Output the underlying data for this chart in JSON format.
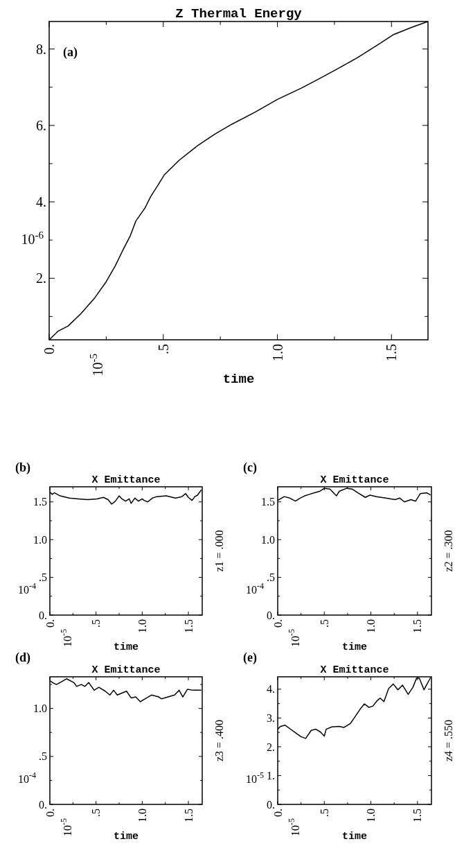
{
  "chart_data": [
    {
      "type": "line",
      "title": "Z Thermal Energy",
      "xlabel": "time",
      "ylabel": "10$^{-6}$",
      "annotations": [
        "(a)",
        "10$^{-5}$"
      ],
      "xlim": [
        0,
        1.66
      ],
      "ylim": [
        0.39,
        8.72
      ],
      "xticks": [
        {
          "value": 0,
          "label": "0."
        },
        {
          "value": 0.25,
          "label": null
        },
        {
          "value": 0.5,
          "label": ".5"
        },
        {
          "value": 0.75,
          "label": null
        },
        {
          "value": 1,
          "label": "1.0"
        },
        {
          "value": 1.25,
          "label": null
        },
        {
          "value": 1.5,
          "label": "1.5"
        }
      ],
      "yticks": [
        {
          "value": 1,
          "label": null
        },
        {
          "value": 2,
          "label": "2."
        },
        {
          "value": 3,
          "label": null
        },
        {
          "value": 4,
          "label": "4."
        },
        {
          "value": 5,
          "label": null
        },
        {
          "value": 6,
          "label": "6."
        },
        {
          "value": 7,
          "label": null
        },
        {
          "value": 8,
          "label": "8."
        }
      ],
      "series": [
        {
          "color": "#000000",
          "x": [
            0,
            0.04,
            0.083,
            0.14,
            0.2,
            0.25,
            0.29,
            0.32,
            0.356,
            0.38,
            0.42,
            0.445,
            0.477,
            0.505,
            0.57,
            0.65,
            0.725,
            0.8,
            0.9,
            1.0,
            1.106,
            1.18,
            1.26,
            1.35,
            1.44,
            1.51,
            1.59,
            1.66
          ],
          "values": [
            0.39,
            0.62,
            0.75,
            1.08,
            1.49,
            1.91,
            2.33,
            2.7,
            3.12,
            3.5,
            3.84,
            4.14,
            4.44,
            4.71,
            5.09,
            5.47,
            5.77,
            6.03,
            6.34,
            6.68,
            6.98,
            7.21,
            7.47,
            7.77,
            8.11,
            8.38,
            8.57,
            8.72
          ]
        }
      ]
    },
    {
      "type": "line",
      "title": "X Emittance",
      "xlabel": "time",
      "ylabel": "10$^{-4}$",
      "annotations": [
        "(b)",
        "10$^{-5}$",
        "z1 = .000"
      ],
      "xlim": [
        0,
        1.65
      ],
      "ylim": [
        0,
        1.7
      ],
      "xticks": [
        {
          "value": 0,
          "label": "0."
        },
        {
          "value": 0.25,
          "label": null
        },
        {
          "value": 0.5,
          "label": ".5"
        },
        {
          "value": 0.75,
          "label": null
        },
        {
          "value": 1,
          "label": "1.0"
        },
        {
          "value": 1.25,
          "label": null
        },
        {
          "value": 1.5,
          "label": "1.5"
        }
      ],
      "yticks": [
        {
          "value": 0,
          "label": "0."
        },
        {
          "value": 0.25,
          "label": null
        },
        {
          "value": 0.5,
          "label": ".5"
        },
        {
          "value": 0.75,
          "label": null
        },
        {
          "value": 1,
          "label": "1.0"
        },
        {
          "value": 1.25,
          "label": null
        },
        {
          "value": 1.5,
          "label": "1.5"
        }
      ],
      "series": [
        {
          "color": "#000000",
          "x": [
            0,
            0.025,
            0.05,
            0.11,
            0.21,
            0.31,
            0.41,
            0.51,
            0.58,
            0.63,
            0.67,
            0.71,
            0.75,
            0.78,
            0.82,
            0.86,
            0.88,
            0.92,
            0.96,
            1.0,
            1.02,
            1.06,
            1.11,
            1.16,
            1.26,
            1.36,
            1.43,
            1.47,
            1.5,
            1.54,
            1.57,
            1.6,
            1.64
          ],
          "values": [
            1.63,
            1.6,
            1.62,
            1.58,
            1.55,
            1.54,
            1.53,
            1.54,
            1.56,
            1.53,
            1.47,
            1.51,
            1.58,
            1.54,
            1.51,
            1.54,
            1.48,
            1.55,
            1.51,
            1.54,
            1.52,
            1.5,
            1.55,
            1.57,
            1.58,
            1.55,
            1.57,
            1.61,
            1.56,
            1.52,
            1.57,
            1.59,
            1.66
          ]
        }
      ]
    },
    {
      "type": "line",
      "title": "X Emittance",
      "xlabel": "time",
      "ylabel": "10$^{-4}$",
      "annotations": [
        "(c)",
        "10$^{-5}$",
        "z2 = .300"
      ],
      "xlim": [
        0,
        1.65
      ],
      "ylim": [
        0,
        1.7
      ],
      "xticks": [
        {
          "value": 0,
          "label": "0."
        },
        {
          "value": 0.25,
          "label": null
        },
        {
          "value": 0.5,
          "label": ".5"
        },
        {
          "value": 0.75,
          "label": null
        },
        {
          "value": 1,
          "label": "1.0"
        },
        {
          "value": 1.25,
          "label": null
        },
        {
          "value": 1.5,
          "label": "1.5"
        }
      ],
      "yticks": [
        {
          "value": 0,
          "label": "0."
        },
        {
          "value": 0.25,
          "label": null
        },
        {
          "value": 0.5,
          "label": ".5"
        },
        {
          "value": 0.75,
          "label": null
        },
        {
          "value": 1,
          "label": "1.0"
        },
        {
          "value": 1.25,
          "label": null
        },
        {
          "value": 1.5,
          "label": "1.5"
        }
      ],
      "series": [
        {
          "color": "#000000",
          "x": [
            0,
            0.07,
            0.13,
            0.19,
            0.24,
            0.29,
            0.34,
            0.39,
            0.45,
            0.5,
            0.56,
            0.63,
            0.66,
            0.74,
            0.8,
            0.86,
            0.94,
            0.99,
            1.06,
            1.16,
            1.26,
            1.31,
            1.36,
            1.43,
            1.48,
            1.53,
            1.6,
            1.64
          ],
          "values": [
            1.52,
            1.57,
            1.55,
            1.51,
            1.55,
            1.58,
            1.6,
            1.62,
            1.64,
            1.68,
            1.67,
            1.58,
            1.64,
            1.68,
            1.67,
            1.62,
            1.56,
            1.59,
            1.57,
            1.55,
            1.53,
            1.55,
            1.5,
            1.53,
            1.51,
            1.61,
            1.62,
            1.59
          ]
        }
      ]
    },
    {
      "type": "line",
      "title": "X Emittance",
      "xlabel": "time",
      "ylabel": "10$^{-4}$",
      "annotations": [
        "(d)",
        "10$^{-5}$",
        "z3 = .400"
      ],
      "xlim": [
        0,
        1.65
      ],
      "ylim": [
        0,
        1.33
      ],
      "xticks": [
        {
          "value": 0,
          "label": "0."
        },
        {
          "value": 0.25,
          "label": null
        },
        {
          "value": 0.5,
          "label": ".5"
        },
        {
          "value": 0.75,
          "label": null
        },
        {
          "value": 1,
          "label": "1.0"
        },
        {
          "value": 1.25,
          "label": null
        },
        {
          "value": 1.5,
          "label": "1.5"
        }
      ],
      "yticks": [
        {
          "value": 0,
          "label": "0."
        },
        {
          "value": 0.25,
          "label": null
        },
        {
          "value": 0.5,
          "label": ".5"
        },
        {
          "value": 0.75,
          "label": null
        },
        {
          "value": 1,
          "label": "1.0"
        },
        {
          "value": 1.25,
          "label": null
        }
      ],
      "series": [
        {
          "color": "#000000",
          "x": [
            0,
            0.03,
            0.07,
            0.13,
            0.18,
            0.26,
            0.29,
            0.34,
            0.38,
            0.42,
            0.48,
            0.53,
            0.6,
            0.65,
            0.69,
            0.73,
            0.78,
            0.83,
            0.88,
            0.93,
            0.98,
            1.03,
            1.1,
            1.18,
            1.21,
            1.28,
            1.35,
            1.4,
            1.44,
            1.49,
            1.55,
            1.64
          ],
          "values": [
            1.29,
            1.27,
            1.25,
            1.28,
            1.31,
            1.27,
            1.23,
            1.25,
            1.23,
            1.27,
            1.19,
            1.22,
            1.18,
            1.14,
            1.19,
            1.14,
            1.16,
            1.18,
            1.11,
            1.12,
            1.07,
            1.1,
            1.14,
            1.12,
            1.1,
            1.12,
            1.14,
            1.19,
            1.12,
            1.2,
            1.19,
            1.19
          ]
        }
      ]
    },
    {
      "type": "line",
      "title": "X Emittance",
      "xlabel": "time",
      "ylabel": "10$^{-5}$",
      "annotations": [
        "(e)",
        "10$^{-5}$",
        "z4 = .550"
      ],
      "xlim": [
        0,
        1.65
      ],
      "ylim": [
        0,
        4.43
      ],
      "xticks": [
        {
          "value": 0,
          "label": "0."
        },
        {
          "value": 0.25,
          "label": null
        },
        {
          "value": 0.5,
          "label": ".5"
        },
        {
          "value": 0.75,
          "label": null
        },
        {
          "value": 1,
          "label": "1.0"
        },
        {
          "value": 1.25,
          "label": null
        },
        {
          "value": 1.5,
          "label": "1.5"
        }
      ],
      "yticks": [
        {
          "value": 0,
          "label": "0."
        },
        {
          "value": 0.5,
          "label": null
        },
        {
          "value": 1,
          "label": "1."
        },
        {
          "value": 1.5,
          "label": null
        },
        {
          "value": 2,
          "label": "2."
        },
        {
          "value": 2.5,
          "label": null
        },
        {
          "value": 3,
          "label": "3."
        },
        {
          "value": 3.5,
          "label": null
        },
        {
          "value": 4,
          "label": "4."
        }
      ],
      "series": [
        {
          "color": "#000000",
          "x": [
            0,
            0.03,
            0.08,
            0.13,
            0.19,
            0.25,
            0.3,
            0.36,
            0.41,
            0.46,
            0.5,
            0.52,
            0.58,
            0.66,
            0.71,
            0.78,
            0.84,
            0.89,
            0.93,
            0.98,
            1.02,
            1.07,
            1.1,
            1.14,
            1.19,
            1.24,
            1.29,
            1.34,
            1.4,
            1.45,
            1.49,
            1.52,
            1.57,
            1.61,
            1.64
          ],
          "values": [
            2.61,
            2.71,
            2.75,
            2.63,
            2.49,
            2.35,
            2.29,
            2.57,
            2.61,
            2.51,
            2.37,
            2.61,
            2.69,
            2.71,
            2.67,
            2.81,
            3.09,
            3.33,
            3.49,
            3.37,
            3.41,
            3.61,
            3.69,
            3.57,
            4.02,
            4.18,
            3.98,
            4.14,
            3.82,
            4.06,
            4.38,
            4.38,
            3.98,
            4.22,
            4.4
          ]
        }
      ]
    }
  ]
}
